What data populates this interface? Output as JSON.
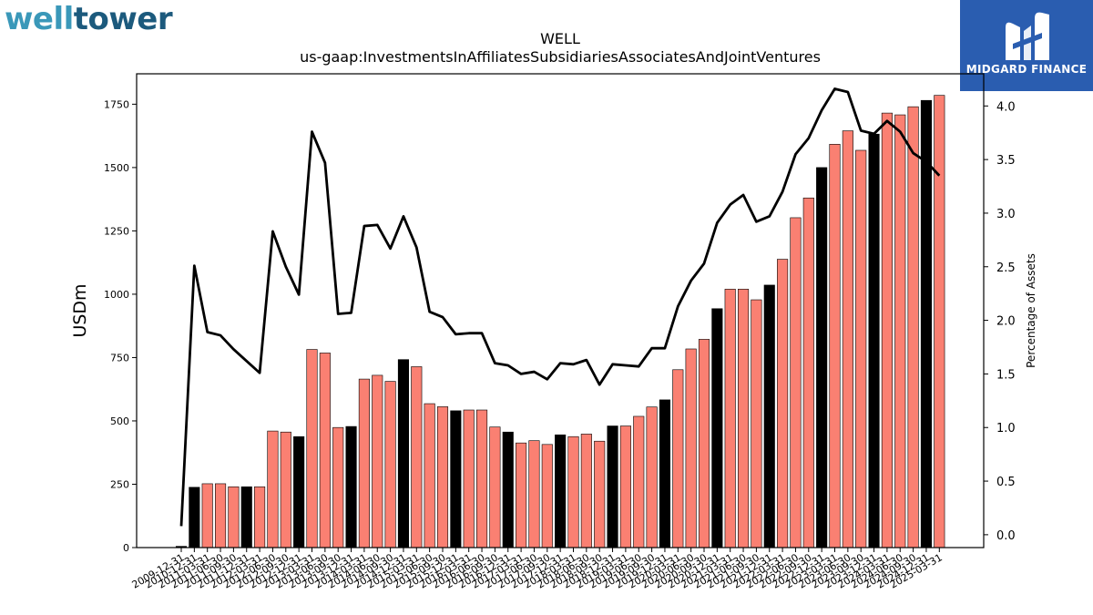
{
  "logos": {
    "left_part1": "well",
    "left_part2": "tower",
    "right_name": "MIDGARD FINANCE",
    "right_icon": "midgard-m-icon",
    "left_colors": [
      "#3a98b9",
      "#1c5a7d"
    ],
    "right_bg": "#2a5db0"
  },
  "chart_data": {
    "type": "bar",
    "title": "WELL",
    "subtitle": "us-gaap:InvestmentsInAffiliatesSubsidiariesAssociatesAndJointVentures",
    "ylabel": "USDm",
    "y2label": "Percentage of Assets",
    "ylim": [
      0,
      1870
    ],
    "y2lim": [
      -0.12,
      4.3
    ],
    "yticks": [
      0,
      250,
      500,
      750,
      1000,
      1250,
      1500,
      1750
    ],
    "y2ticks": [
      0.0,
      0.5,
      1.0,
      1.5,
      2.0,
      2.5,
      3.0,
      3.5,
      4.0
    ],
    "grid": false,
    "colors": {
      "q4": "#000000",
      "other": "#fa8072",
      "line": "#000000"
    },
    "categories": [
      "2009-12-31",
      "2010-12-31",
      "2011-03-31",
      "2011-06-30",
      "2011-09-30",
      "2011-12-31",
      "2012-03-31",
      "2012-06-30",
      "2012-09-30",
      "2012-12-31",
      "2013-03-31",
      "2013-06-30",
      "2013-09-30",
      "2013-12-31",
      "2014-03-31",
      "2014-06-30",
      "2014-09-30",
      "2014-12-31",
      "2015-03-31",
      "2015-06-30",
      "2015-09-30",
      "2015-12-31",
      "2016-03-31",
      "2016-06-30",
      "2016-09-30",
      "2016-12-31",
      "2017-03-31",
      "2017-06-30",
      "2017-09-30",
      "2017-12-31",
      "2018-03-31",
      "2018-06-30",
      "2018-09-30",
      "2018-12-31",
      "2019-03-31",
      "2019-06-30",
      "2019-09-30",
      "2019-12-31",
      "2020-03-31",
      "2020-06-30",
      "2020-09-30",
      "2020-12-31",
      "2021-03-31",
      "2021-06-30",
      "2021-09-30",
      "2021-12-31",
      "2022-03-31",
      "2022-06-30",
      "2022-09-30",
      "2022-12-31",
      "2023-03-31",
      "2023-06-30",
      "2023-09-30",
      "2023-12-31",
      "2024-03-31",
      "2024-06-30",
      "2024-09-30",
      "2024-12-31",
      "2025-03-31"
    ],
    "values": [
      5,
      238,
      252,
      252,
      240,
      240,
      240,
      460,
      456,
      438,
      782,
      768,
      474,
      478,
      665,
      680,
      656,
      742,
      714,
      568,
      556,
      540,
      543,
      543,
      476,
      456,
      413,
      422,
      407,
      445,
      438,
      448,
      420,
      480,
      480,
      518,
      555,
      583,
      702,
      784,
      822,
      943,
      1020,
      1020,
      978,
      1036,
      1138,
      1302,
      1380,
      1500,
      1592,
      1645,
      1568,
      1632,
      1715,
      1708,
      1740,
      1765,
      1785
    ],
    "series": [
      {
        "name": "Percentage of Assets",
        "type": "line",
        "axis": "right",
        "values": [
          0.08,
          2.51,
          1.89,
          1.86,
          1.73,
          1.62,
          1.51,
          2.83,
          2.5,
          2.24,
          3.76,
          3.47,
          2.06,
          2.07,
          2.88,
          2.89,
          2.67,
          2.97,
          2.68,
          2.08,
          2.03,
          1.87,
          1.88,
          1.88,
          1.6,
          1.58,
          1.5,
          1.52,
          1.45,
          1.6,
          1.59,
          1.63,
          1.4,
          1.59,
          1.58,
          1.57,
          1.74,
          1.74,
          2.13,
          2.37,
          2.53,
          2.91,
          3.08,
          3.17,
          2.92,
          2.97,
          3.2,
          3.55,
          3.7,
          3.96,
          4.16,
          4.13,
          3.77,
          3.74,
          3.86,
          3.76,
          3.56,
          3.48,
          3.35
        ]
      }
    ]
  }
}
